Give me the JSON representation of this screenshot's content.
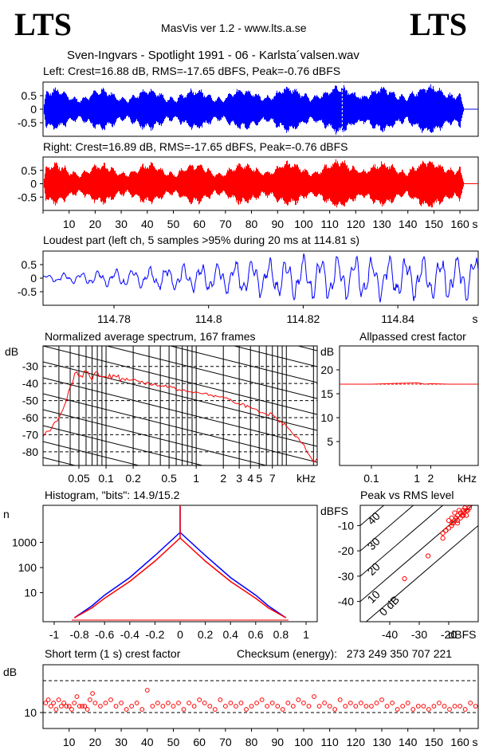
{
  "header": {
    "logo_left": "LTS",
    "logo_right": "LTS",
    "app_title": "MasVis ver 1.2 - www.lts.a.se",
    "file_title": "Sven-Ingvars - Spotlight 1991 - 06 - Karlsta´valsen.wav"
  },
  "colors": {
    "left": "#0000ff",
    "right": "#ff0000",
    "axis": "#000000"
  },
  "chart_data": [
    {
      "type": "line",
      "title": "Left: Crest=16.88 dB, RMS=-17.65 dBFS, Peak=-0.76 dBFS",
      "series": [
        {
          "name": "left",
          "color": "#0000ff"
        }
      ],
      "yticks": [
        "0.5",
        "0",
        "-0.5"
      ],
      "ylim": [
        -1,
        1
      ],
      "xlim": [
        0,
        167
      ],
      "annotation": "dashed marker at 114.81 s"
    },
    {
      "type": "line",
      "title": "Right: Crest=16.89 dB, RMS=-17.65 dBFS, Peak=-0.76 dBFS",
      "series": [
        {
          "name": "right",
          "color": "#ff0000"
        }
      ],
      "yticks": [
        "0.5",
        "0",
        "-0.5"
      ],
      "xticks": [
        "10",
        "20",
        "30",
        "40",
        "50",
        "60",
        "70",
        "80",
        "90",
        "100",
        "110",
        "120",
        "130",
        "140",
        "150",
        "160"
      ],
      "xunit": "s",
      "ylim": [
        -1,
        1
      ],
      "xlim": [
        0,
        167
      ]
    },
    {
      "type": "line",
      "title": "Loudest part (left  ch, 5 samples >95% during 20 ms at 114.81 s)",
      "yticks": [
        "0.5",
        "0",
        "-0.5"
      ],
      "xticks": [
        "114.78",
        "114.8",
        "114.82",
        "114.84"
      ],
      "xunit": "s",
      "ylim": [
        -1,
        1
      ],
      "xlim": [
        114.765,
        114.857
      ]
    },
    {
      "type": "line",
      "title": "Normalized average spectrum, 167 frames",
      "ylabel": "dB",
      "yticks": [
        "-30",
        "-40",
        "-50",
        "-60",
        "-70",
        "-80"
      ],
      "xticks": [
        "0.05",
        "0.1",
        "0.2",
        "0.5",
        "1",
        "2",
        "3",
        "4",
        "5",
        "7"
      ],
      "xunit": "kHz",
      "ylim": [
        -88,
        -18
      ],
      "xlim": [
        0.02,
        22
      ],
      "x": [
        0.02,
        0.025,
        0.03,
        0.035,
        0.04,
        0.045,
        0.05,
        0.06,
        0.07,
        0.08,
        0.1,
        0.12,
        0.15,
        0.2,
        0.3,
        0.5,
        0.7,
        1,
        1.5,
        2,
        3,
        4,
        5,
        6,
        7,
        8,
        10,
        12,
        15,
        18,
        20,
        22
      ],
      "y": [
        -71,
        -66,
        -60,
        -52,
        -42,
        -34,
        -36,
        -33,
        -38,
        -33,
        -36,
        -35,
        -37,
        -38,
        -40,
        -42,
        -44,
        -45,
        -47,
        -48,
        -52,
        -54,
        -57,
        -58,
        -58,
        -61,
        -65,
        -70,
        -75,
        -82,
        -86,
        -84
      ]
    },
    {
      "type": "line",
      "title": "Allpassed crest factor",
      "ylabel": "dB",
      "yticks": [
        "20",
        "15",
        "10",
        "5"
      ],
      "xticks": [
        "0.1",
        "1",
        "2"
      ],
      "xunit": "kHz",
      "ylim": [
        0,
        25
      ],
      "xlim": [
        0.02,
        22
      ],
      "x": [
        0.02,
        0.1,
        0.5,
        1,
        1.5,
        2,
        5,
        22
      ],
      "y": [
        17,
        17,
        17.2,
        17.3,
        17.0,
        17.1,
        17.0,
        17.0
      ],
      "reference_line": 17.0
    },
    {
      "type": "area",
      "title": "Histogram, \"bits\": 14.9/15.2",
      "ylabel": "n",
      "yticks": [
        "1000",
        "100",
        "10"
      ],
      "xticks": [
        "-1",
        "-0.8",
        "-0.6",
        "-0.4",
        "-0.2",
        "0",
        "0.2",
        "0.4",
        "0.6",
        "0.8",
        "1"
      ],
      "xlim": [
        -1,
        1
      ],
      "series": [
        {
          "name": "left",
          "color": "#0000ff",
          "x": [
            -0.84,
            -0.7,
            -0.6,
            -0.4,
            -0.2,
            0,
            0.2,
            0.4,
            0.6,
            0.7,
            0.84
          ],
          "y": [
            1,
            3,
            8,
            40,
            300,
            2500,
            300,
            40,
            8,
            3,
            1
          ]
        },
        {
          "name": "right",
          "color": "#ff0000",
          "x": [
            -0.84,
            -0.7,
            -0.6,
            -0.4,
            -0.2,
            0,
            0.2,
            0.4,
            0.6,
            0.7,
            0.84
          ],
          "y": [
            1,
            2.5,
            6,
            28,
            180,
            1500,
            180,
            28,
            6,
            2.5,
            1
          ]
        }
      ]
    },
    {
      "type": "scatter",
      "title": "Peak vs RMS level",
      "ylabel": "dBFS",
      "xlabel": "dBFS",
      "yticks": [
        "-10",
        "-20",
        "-30",
        "-40"
      ],
      "xticks": [
        "-40",
        "-30",
        "-20"
      ],
      "xlim": [
        -50,
        -10
      ],
      "ylim": [
        -48,
        -2
      ],
      "diagonal_labels": [
        "40",
        "30",
        "20",
        "10",
        "0 dB"
      ],
      "x": [
        -35,
        -27,
        -22,
        -21,
        -20,
        -20,
        -19,
        -19,
        -18.5,
        -18,
        -18,
        -17.5,
        -17,
        -17,
        -16.5,
        -16,
        -16,
        -15.5,
        -15,
        -15,
        -14.5,
        -14,
        -14,
        -13.5,
        -13,
        -22,
        -21,
        -19,
        -17,
        -15
      ],
      "y": [
        -31,
        -22,
        -13,
        -12,
        -11,
        -8,
        -10,
        -7,
        -9,
        -8,
        -5,
        -7,
        -6,
        -9,
        -4,
        -5,
        -7,
        -6,
        -4,
        -5,
        -3,
        -4,
        -6,
        -4,
        -3,
        -15,
        -12,
        -9,
        -8,
        -6
      ]
    },
    {
      "type": "scatter",
      "title": "Short term (1 s) crest factor",
      "ylabel": "dB",
      "yticks": [
        "10"
      ],
      "xticks": [
        "10",
        "20",
        "30",
        "40",
        "50",
        "60",
        "70",
        "80",
        "90",
        "100",
        "110",
        "120",
        "130",
        "140",
        "150",
        "160"
      ],
      "xunit": "s",
      "xlim": [
        0,
        167
      ],
      "ylim": [
        5,
        25
      ],
      "reference_lines": [
        10,
        20
      ],
      "x": [
        1,
        2,
        3,
        4,
        5,
        6,
        7,
        8,
        9,
        10,
        11,
        12,
        13,
        14,
        15,
        16,
        17,
        18,
        19,
        20,
        22,
        24,
        26,
        28,
        30,
        32,
        34,
        36,
        38,
        40,
        42,
        44,
        46,
        48,
        50,
        52,
        54,
        56,
        58,
        60,
        62,
        64,
        66,
        68,
        70,
        72,
        74,
        76,
        78,
        80,
        82,
        84,
        86,
        88,
        90,
        92,
        94,
        96,
        98,
        100,
        102,
        104,
        106,
        108,
        110,
        112,
        114,
        116,
        118,
        120,
        122,
        124,
        126,
        128,
        130,
        132,
        134,
        136,
        138,
        140,
        142,
        144,
        146,
        148,
        150,
        152,
        154,
        156,
        158,
        160,
        162,
        164,
        166
      ],
      "y": [
        13,
        14,
        12,
        13,
        11,
        14,
        12,
        13,
        12,
        12,
        11,
        13,
        15,
        12,
        12,
        12,
        11,
        14,
        16,
        13,
        12,
        13,
        14,
        12,
        13,
        11,
        12,
        13,
        11,
        17,
        12,
        13,
        12,
        13,
        12,
        13,
        11,
        13,
        12,
        14,
        13,
        12,
        11,
        14,
        12,
        13,
        12,
        13,
        11,
        12,
        13,
        14,
        12,
        13,
        12,
        11,
        13,
        12,
        14,
        13,
        12,
        15,
        12,
        13,
        12,
        11,
        14,
        12,
        13,
        12,
        13,
        12,
        12,
        13,
        14,
        12,
        13,
        11,
        12,
        13,
        11,
        12,
        12,
        11,
        12,
        13,
        12,
        11,
        12,
        12,
        11,
        13,
        12
      ]
    }
  ],
  "checksum": {
    "label": "Checksum (energy):",
    "value": "273 249 350 707 221"
  }
}
